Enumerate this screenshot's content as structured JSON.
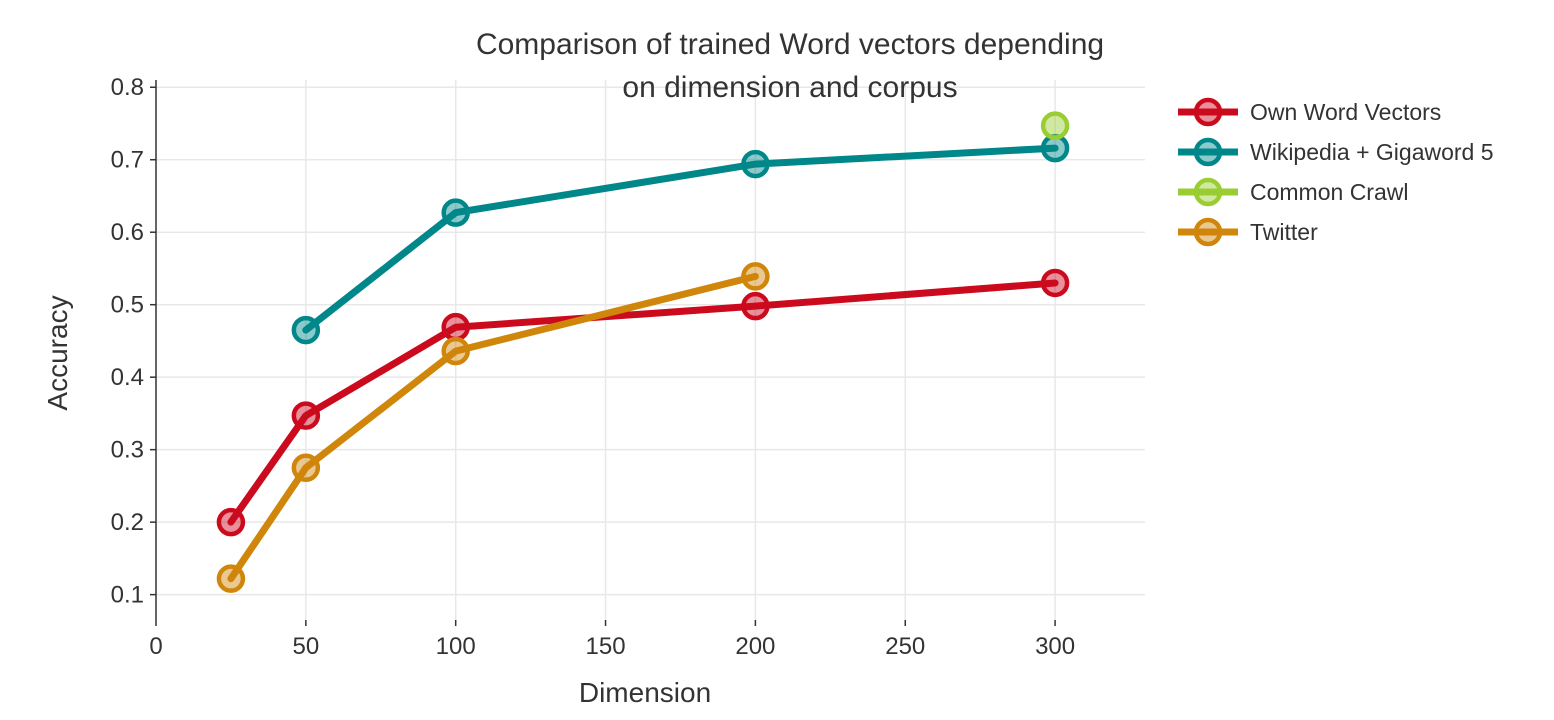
{
  "chart_data": {
    "type": "line",
    "title_lines": [
      "Comparison of trained Word vectors depending",
      "on dimension and corpus"
    ],
    "xlabel": "Dimension",
    "ylabel": "Accuracy",
    "xlim": [
      0,
      330
    ],
    "ylim": [
      0.065,
      0.81
    ],
    "x_ticks": [
      0,
      50,
      100,
      150,
      200,
      250,
      300
    ],
    "y_ticks": [
      0.1,
      0.2,
      0.3,
      0.4,
      0.5,
      0.6,
      0.7,
      0.8
    ],
    "grid": true,
    "legend_position": "right",
    "series": [
      {
        "name": "Own Word Vectors",
        "color": "#cc0a1e",
        "points": [
          {
            "x": 25,
            "y": 0.2
          },
          {
            "x": 50,
            "y": 0.347
          },
          {
            "x": 100,
            "y": 0.469
          },
          {
            "x": 200,
            "y": 0.498
          },
          {
            "x": 300,
            "y": 0.53
          }
        ]
      },
      {
        "name": "Wikipedia + Gigaword 5",
        "color": "#00878a",
        "points": [
          {
            "x": 50,
            "y": 0.465
          },
          {
            "x": 100,
            "y": 0.627
          },
          {
            "x": 200,
            "y": 0.694
          },
          {
            "x": 300,
            "y": 0.716
          }
        ]
      },
      {
        "name": "Common Crawl",
        "color": "#9acd32",
        "points": [
          {
            "x": 300,
            "y": 0.747
          }
        ]
      },
      {
        "name": "Twitter",
        "color": "#d0860a",
        "points": [
          {
            "x": 25,
            "y": 0.122
          },
          {
            "x": 50,
            "y": 0.275
          },
          {
            "x": 100,
            "y": 0.436
          },
          {
            "x": 200,
            "y": 0.539
          }
        ]
      }
    ]
  }
}
